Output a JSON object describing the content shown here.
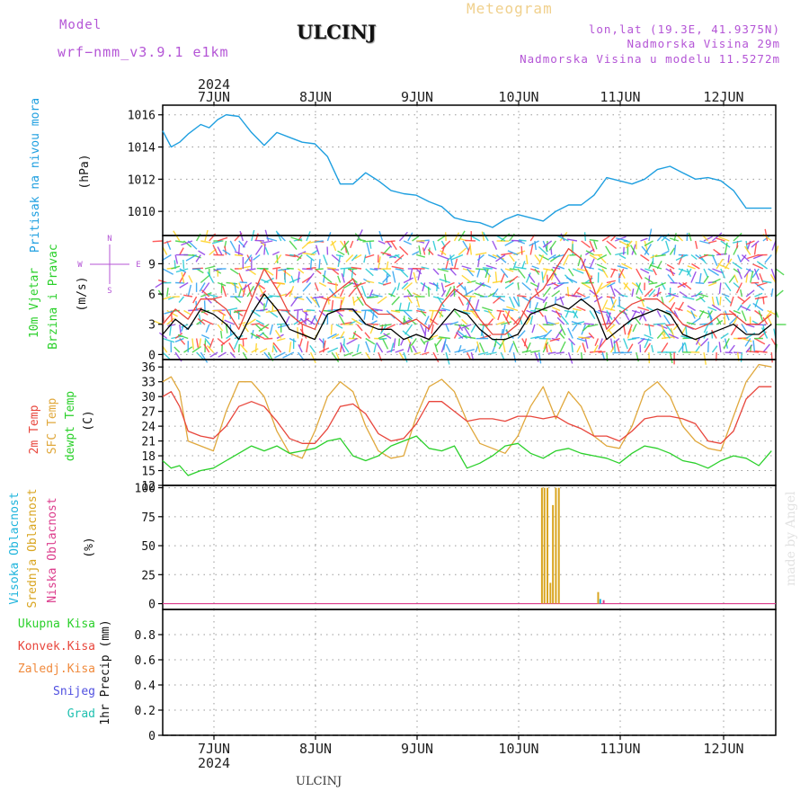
{
  "header": {
    "model_label": "Model",
    "model_name": "wrf−nmm_v3.9.1  e1km",
    "title": "ULCINJ",
    "subtitle": "Meteogram",
    "lonlat": "lon,lat (19.3E, 41.9375N)",
    "elevation": "Nadmorska Visina 29m",
    "model_elevation": "Nadmorska Visina u modelu 11.5272m",
    "credit": "made by Angel",
    "footer_station": "ULCINJ"
  },
  "time_axis": {
    "year": "2024",
    "days": [
      "7JUN",
      "8JUN",
      "9JUN",
      "10JUN",
      "11JUN",
      "12JUN"
    ],
    "hours_range": [
      0,
      145
    ]
  },
  "panel_labels": {
    "pressure": [
      "Pritisak na nivou mora",
      "(hPa)"
    ],
    "wind": [
      "10m Vjetar",
      "Brzina i Pravac",
      "(m/s)"
    ],
    "compass": {
      "n": "N",
      "s": "S",
      "w": "W",
      "e": "E"
    },
    "temp": [
      "2m Temp",
      "SFC Temp",
      "dewpt Temp",
      "(C)"
    ],
    "cloud": [
      "Visoka Oblacnost",
      "Srednja Oblacnost",
      "Niska Oblacnost",
      "(%)"
    ],
    "precip": [
      "Ukupna Kisa",
      "Konvek.Kisa",
      "Zaledj.Kisa",
      "Snijeg",
      "Grad",
      "1hr Precip (mm)"
    ]
  },
  "colors": {
    "pressure": "#1e9fe0",
    "wind_mean": "#000000",
    "wind_gust": "#e8463c",
    "temp_2m": "#e8463c",
    "temp_sfc": "#e0a83c",
    "temp_dew": "#2ad02a",
    "cloud_high": "#1eb4dc",
    "cloud_mid": "#d9a520",
    "cloud_low": "#dc3c8c",
    "header_purple": "#b455d6",
    "subtitle": "#f0d08c"
  },
  "chart_data": [
    {
      "type": "line",
      "panel": "pressure",
      "ylabel": "Pritisak na nivou mora (hPa)",
      "ylim": [
        1008.5,
        1016.6
      ],
      "yticks": [
        1010,
        1012,
        1014,
        1016
      ],
      "series": [
        {
          "x": [
            0,
            2,
            4,
            6,
            9,
            11,
            13,
            15,
            18,
            21,
            24,
            27,
            30,
            33,
            36,
            39,
            42,
            45,
            48,
            51,
            54,
            57,
            60,
            63,
            66,
            69,
            72,
            75,
            78,
            81,
            84,
            87,
            90,
            93,
            96,
            99,
            102,
            105,
            108,
            111,
            114,
            117,
            120,
            123,
            126,
            129,
            132,
            135,
            138,
            141,
            144
          ],
          "y": [
            1015.0,
            1014.0,
            1014.3,
            1014.8,
            1015.4,
            1015.2,
            1015.7,
            1016.0,
            1015.9,
            1014.9,
            1014.1,
            1014.9,
            1014.6,
            1014.3,
            1014.2,
            1013.4,
            1011.7,
            1011.7,
            1012.4,
            1011.9,
            1011.3,
            1011.1,
            1011.0,
            1010.6,
            1010.3,
            1009.6,
            1009.4,
            1009.3,
            1009.0,
            1009.5,
            1009.8,
            1009.6,
            1009.4,
            1010.0,
            1010.4,
            1010.4,
            1011.0,
            1012.1,
            1011.9,
            1011.7,
            1012.0,
            1012.6,
            1012.8,
            1012.4,
            1012.0,
            1012.1,
            1011.9,
            1011.3,
            1010.2,
            1010.2,
            1010.2
          ]
        }
      ]
    },
    {
      "type": "line",
      "panel": "wind",
      "ylabel": "10m Vjetar Brzina i Pravac (m/s)",
      "ylim": [
        -0.5,
        11.8
      ],
      "yticks": [
        0,
        3,
        6,
        9
      ],
      "series": [
        {
          "x": [
            0,
            3,
            6,
            9,
            12,
            15,
            18,
            21,
            24,
            27,
            30,
            33,
            36,
            39,
            42,
            45,
            48,
            51,
            54,
            57,
            60,
            63,
            66,
            69,
            72,
            75,
            78,
            81,
            84,
            87,
            90,
            93,
            96,
            99,
            102,
            105,
            108,
            111,
            114,
            117,
            120,
            123,
            126,
            129,
            132,
            135,
            138,
            141,
            144
          ],
          "y": [
            2,
            3.5,
            2.5,
            4.5,
            4,
            3,
            1.5,
            4,
            6,
            4.5,
            2.5,
            2,
            1.5,
            4,
            4.5,
            4.5,
            3,
            2.5,
            2.5,
            1.5,
            2,
            1.5,
            3,
            4.5,
            4,
            2.5,
            1.5,
            1.5,
            2,
            4,
            4.5,
            5,
            4.5,
            5.5,
            4.5,
            1.5,
            2.5,
            3.5,
            4,
            4.5,
            4,
            2,
            1.5,
            2,
            2.5,
            3,
            2,
            2,
            3
          ]
        },
        {
          "x": [
            0,
            3,
            6,
            9,
            12,
            15,
            18,
            21,
            24,
            27,
            30,
            33,
            36,
            39,
            42,
            45,
            48,
            51,
            54,
            57,
            60,
            63,
            66,
            69,
            72,
            75,
            78,
            81,
            84,
            87,
            90,
            93,
            96,
            99,
            102,
            105,
            108,
            111,
            114,
            117,
            120,
            123,
            126,
            129,
            132,
            135,
            138,
            141,
            144
          ],
          "y": [
            3,
            4.5,
            3.5,
            5.5,
            5.5,
            4.5,
            2.5,
            5.5,
            8.5,
            6.5,
            4,
            3,
            2.5,
            5.5,
            6.5,
            7.5,
            5,
            4,
            4,
            3,
            3.5,
            2.5,
            5,
            6.5,
            5.5,
            3.5,
            2,
            2,
            3,
            5.5,
            6.5,
            8.5,
            10.5,
            9.5,
            6.5,
            2.5,
            4,
            5,
            5.5,
            5.5,
            4.5,
            3,
            2.5,
            3,
            4,
            4,
            3,
            3,
            4
          ]
        }
      ]
    },
    {
      "type": "line",
      "panel": "temp",
      "ylabel": "Temp (C)",
      "ylim": [
        12,
        37.5
      ],
      "yticks": [
        12,
        15,
        18,
        21,
        24,
        27,
        30,
        33,
        36
      ],
      "series": [
        {
          "name": "2m Temp",
          "x": [
            0,
            2,
            4,
            6,
            9,
            12,
            15,
            18,
            21,
            24,
            27,
            30,
            33,
            36,
            39,
            42,
            45,
            48,
            51,
            54,
            57,
            60,
            63,
            66,
            69,
            72,
            75,
            78,
            81,
            84,
            87,
            90,
            93,
            96,
            99,
            102,
            105,
            108,
            111,
            114,
            117,
            120,
            123,
            126,
            129,
            132,
            135,
            138,
            141,
            144
          ],
          "y": [
            30,
            31,
            28,
            23,
            22,
            21.5,
            24,
            28,
            29,
            28,
            25,
            21.5,
            20.5,
            20.5,
            23.5,
            28,
            28.5,
            26.5,
            22.5,
            21,
            21.5,
            24.5,
            29,
            29,
            27,
            25,
            25.5,
            25.5,
            25,
            26,
            26,
            25.5,
            26,
            24.5,
            23.5,
            22,
            22,
            21,
            23,
            25.5,
            26,
            26,
            25.5,
            24.5,
            21,
            20.5,
            23,
            29.5,
            32,
            32
          ]
        },
        {
          "name": "SFC Temp",
          "x": [
            0,
            2,
            4,
            6,
            9,
            12,
            15,
            18,
            21,
            24,
            27,
            30,
            33,
            36,
            39,
            42,
            45,
            48,
            51,
            54,
            57,
            60,
            63,
            66,
            69,
            72,
            75,
            78,
            81,
            84,
            87,
            90,
            93,
            96,
            99,
            102,
            105,
            108,
            111,
            114,
            117,
            120,
            123,
            126,
            129,
            132,
            135,
            138,
            141,
            144
          ],
          "y": [
            33,
            34,
            31,
            21,
            20,
            19,
            27,
            33,
            33,
            30,
            23,
            18.5,
            17.5,
            23,
            30,
            33,
            31,
            24,
            19,
            17.5,
            18,
            26,
            32,
            33.5,
            31,
            25,
            20.5,
            19.5,
            18.5,
            22,
            28,
            32,
            25.5,
            31,
            28,
            22,
            20,
            19.5,
            24,
            31,
            33,
            30,
            24,
            21,
            19.5,
            19,
            26,
            33,
            36.5,
            36
          ]
        },
        {
          "name": "dewpt Temp",
          "x": [
            0,
            2,
            4,
            6,
            9,
            12,
            15,
            18,
            21,
            24,
            27,
            30,
            33,
            36,
            39,
            42,
            45,
            48,
            51,
            54,
            57,
            60,
            63,
            66,
            69,
            72,
            75,
            78,
            81,
            84,
            87,
            90,
            93,
            96,
            99,
            102,
            105,
            108,
            111,
            114,
            117,
            120,
            123,
            126,
            129,
            132,
            135,
            138,
            141,
            144
          ],
          "y": [
            17,
            15.5,
            16,
            14,
            15,
            15.5,
            17,
            18.5,
            20,
            19,
            20,
            18.5,
            19,
            19.5,
            21,
            21.5,
            18,
            17,
            18,
            20,
            21,
            22,
            19.5,
            19,
            20,
            15.5,
            16.5,
            18,
            20,
            20.5,
            18.5,
            17.5,
            19,
            19.5,
            18.5,
            18,
            17.5,
            16.5,
            18.5,
            20,
            19.5,
            18.5,
            17,
            16.5,
            15.5,
            17,
            18,
            17.5,
            16,
            19
          ]
        }
      ]
    },
    {
      "type": "bar",
      "panel": "cloud",
      "ylabel": "Oblacnost (%)",
      "ylim": [
        -5,
        102
      ],
      "yticks": [
        0,
        25,
        50,
        75,
        100
      ],
      "series": [
        {
          "name": "Srednja Oblacnost",
          "x": [
            89.7,
            90.3,
            91.0,
            91.7,
            92.3,
            93.0,
            93.7,
            103.0
          ],
          "values": [
            100,
            100,
            100,
            18,
            85,
            100,
            100,
            10
          ]
        },
        {
          "name": "Visoka Oblacnost",
          "x": [
            103.5
          ],
          "values": [
            4
          ]
        },
        {
          "name": "Niska Oblacnost",
          "x": [
            104.3
          ],
          "values": [
            3
          ]
        }
      ]
    },
    {
      "type": "bar",
      "panel": "precip",
      "ylabel": "1hr Precip (mm)",
      "ylim": [
        0,
        1
      ],
      "yticks": [
        0,
        0.2,
        0.4,
        0.6,
        0.8
      ],
      "series": []
    }
  ]
}
